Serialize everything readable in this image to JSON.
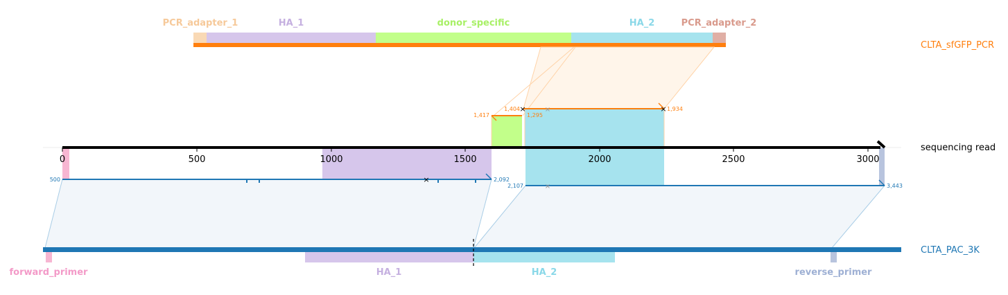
{
  "top_reference": {
    "name": "CLTA_sfGFP_PCR",
    "color": "#ff7f0e",
    "features": [
      {
        "label": "PCR_adapter_1",
        "color": "#f9d9b5",
        "text_color": "#f6c99a"
      },
      {
        "label": "HA_1",
        "color": "#d6c6eb",
        "text_color": "#c5b0e0"
      },
      {
        "label": "donor_specific",
        "color": "#c2ff8a",
        "text_color": "#a8f066"
      },
      {
        "label": "HA_2",
        "color": "#a6e3ee",
        "text_color": "#8ad8e8"
      },
      {
        "label": "PCR_adapter_2",
        "color": "#e0afa5",
        "text_color": "#d99a8c"
      }
    ]
  },
  "read": {
    "name": "sequencing read",
    "ticks": [
      "0",
      "500",
      "1000",
      "1500",
      "2000",
      "2500",
      "3000"
    ]
  },
  "top_alignment_labels": {
    "left_start": "1,417",
    "left_end": "1,404",
    "right_start": "1,295",
    "right_end": "1,934"
  },
  "bottom_alignment_labels": {
    "first_start": "500",
    "first_end": "2,092",
    "second_start": "2,107",
    "second_end": "3,443"
  },
  "bottom_reference": {
    "name": "CLTA_PAC_3K",
    "color": "#1f77b4",
    "features": [
      {
        "label": "forward_primer",
        "color": "#f7b6d2",
        "text_color": "#f39ac8"
      },
      {
        "label": "HA_1",
        "color": "#d6c6eb",
        "text_color": "#c5b0e0"
      },
      {
        "label": "HA_2",
        "color": "#a6e3ee",
        "text_color": "#8ad8e8"
      },
      {
        "label": "reverse_primer",
        "color": "#b8c4de",
        "text_color": "#9eb0d4"
      }
    ]
  }
}
